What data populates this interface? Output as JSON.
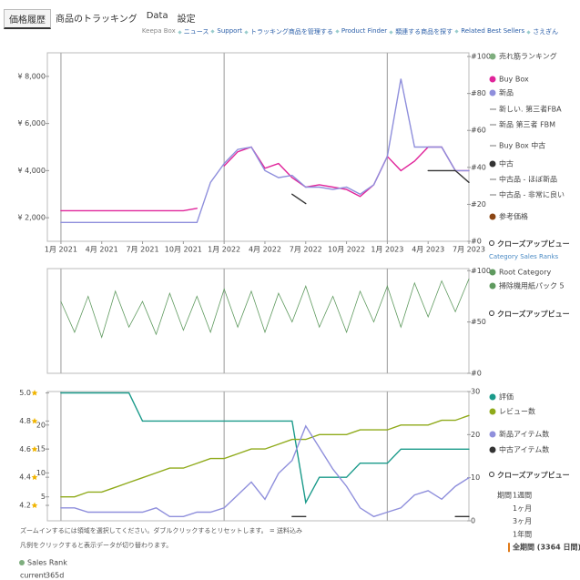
{
  "tabs": [
    "価格履歴",
    "商品のトラッキング",
    "Data",
    "設定"
  ],
  "links": [
    "Keepa Box",
    "ニュース",
    "Support",
    "トラッキング商品を管理する",
    "Product Finder",
    "類連する商品を探す",
    "Related Best Sellers",
    "さえぎん"
  ],
  "closeup_label": "クローズアップビュー",
  "category_sales_ranks": "Category Sales Ranks",
  "period": {
    "label": "期間",
    "options": [
      "1週間",
      "1ヶ月",
      "3ヶ月",
      "1年間",
      "全期間 (3364 日間)"
    ]
  },
  "footer": {
    "lines": [
      "ズームインするには領域を選択してください。ダブルクリックするとリセットします。 = 送料込み",
      "凡例をクリックすると表示データが切り替わります。"
    ],
    "sales_rank": "Sales Rank",
    "columns": [
      "current",
      "365d"
    ]
  },
  "chart_data": [
    {
      "type": "line",
      "x": [
        "2021-01",
        "2021-02",
        "2021-03",
        "2021-04",
        "2021-05",
        "2021-06",
        "2021-07",
        "2021-08",
        "2021-09",
        "2021-10",
        "2021-11",
        "2021-12",
        "2022-01",
        "2022-02",
        "2022-03",
        "2022-04",
        "2022-05",
        "2022-06",
        "2022-07",
        "2022-08",
        "2022-09",
        "2022-10",
        "2022-11",
        "2022-12",
        "2023-01",
        "2023-02",
        "2023-03",
        "2023-04",
        "2023-05",
        "2023-06",
        "2023-07"
      ],
      "xlim": [
        "2020-12",
        "2023-07"
      ],
      "xticks": [
        {
          "value": "2021-01",
          "label": "1月 2021"
        },
        {
          "value": "2021-04",
          "label": "4月 2021"
        },
        {
          "value": "2021-07",
          "label": "7月 2021"
        },
        {
          "value": "2021-10",
          "label": "10月 2021"
        },
        {
          "value": "2022-01",
          "label": "1月 2022"
        },
        {
          "value": "2022-04",
          "label": "4月 2022"
        },
        {
          "value": "2022-07",
          "label": "7月 2022"
        },
        {
          "value": "2022-10",
          "label": "10月 2022"
        },
        {
          "value": "2023-01",
          "label": "1月 2023"
        },
        {
          "value": "2023-04",
          "label": "4月 2023"
        },
        {
          "value": "2023-07",
          "label": "7月 2023"
        }
      ],
      "vlines": [
        "2021-01",
        "2022-01",
        "2023-01"
      ],
      "ylim": [
        1000,
        9000
      ],
      "yticks": [
        {
          "value": 2000,
          "label": "¥ 2,000"
        },
        {
          "value": 4000,
          "label": "¥ 4,000"
        },
        {
          "value": 6000,
          "label": "¥ 6,000"
        },
        {
          "value": 8000,
          "label": "¥ 8,000"
        }
      ],
      "y2lim": [
        0,
        102
      ],
      "y2ticks": [
        {
          "value": 0,
          "label": "#0"
        },
        {
          "value": 20,
          "label": "#20"
        },
        {
          "value": 40,
          "label": "#40"
        },
        {
          "value": 60,
          "label": "#60"
        },
        {
          "value": 80,
          "label": "#80"
        },
        {
          "value": 100,
          "label": "#100"
        }
      ],
      "series": [
        {
          "name": "Buy Box",
          "color": "#e0249a",
          "values": [
            2300,
            2300,
            2300,
            2300,
            2300,
            2300,
            2300,
            2300,
            2300,
            2300,
            2400,
            null,
            4200,
            4800,
            5000,
            4100,
            4300,
            3700,
            3300,
            3400,
            3300,
            3200,
            2900,
            3400,
            4600,
            4000,
            4400,
            5000,
            5000,
            4000,
            4000
          ]
        },
        {
          "name": "新品",
          "color": "#8f8fdc",
          "values": [
            1800,
            1800,
            1800,
            1800,
            1800,
            1800,
            1800,
            1800,
            1800,
            1800,
            1800,
            3500,
            4300,
            4900,
            5000,
            4000,
            3700,
            3800,
            3300,
            3300,
            3200,
            3300,
            3000,
            3400,
            4600,
            7900,
            5000,
            5000,
            5000,
            4000,
            4000
          ]
        },
        {
          "name": "中古",
          "color": "#333333",
          "values": [
            null,
            null,
            null,
            null,
            null,
            null,
            null,
            null,
            null,
            null,
            null,
            null,
            null,
            null,
            null,
            null,
            null,
            3000,
            2600,
            null,
            null,
            null,
            null,
            null,
            null,
            null,
            null,
            4000,
            4000,
            4000,
            3500
          ]
        }
      ],
      "legend_extra": [
        {
          "label": "売れ筋ランキング",
          "color": "#7fae7f",
          "style": "dot"
        },
        {
          "label": "新しい. 第三者FBA",
          "color": "#777777",
          "style": "dash"
        },
        {
          "label": "新品 第三者 FBM",
          "color": "#777777",
          "style": "dash"
        },
        {
          "label": "Buy Box 中古",
          "color": "#777777",
          "style": "dash"
        },
        {
          "label": "中古品 - ほぼ新品",
          "color": "#777777",
          "style": "dash"
        },
        {
          "label": "中古品 - 非常に良い",
          "color": "#777777",
          "style": "dash"
        },
        {
          "label": "参考価格",
          "color": "#8b4513",
          "style": "dot"
        }
      ]
    },
    {
      "type": "line",
      "x": [
        "2021-01",
        "2021-02",
        "2021-03",
        "2021-04",
        "2021-05",
        "2021-06",
        "2021-07",
        "2021-08",
        "2021-09",
        "2021-10",
        "2021-11",
        "2021-12",
        "2022-01",
        "2022-02",
        "2022-03",
        "2022-04",
        "2022-05",
        "2022-06",
        "2022-07",
        "2022-08",
        "2022-09",
        "2022-10",
        "2022-11",
        "2022-12",
        "2023-01",
        "2023-02",
        "2023-03",
        "2023-04",
        "2023-05",
        "2023-06",
        "2023-07"
      ],
      "xlim": [
        "2020-12",
        "2023-07"
      ],
      "vlines": [
        "2021-01",
        "2022-01",
        "2023-01"
      ],
      "ylim": [
        0,
        102
      ],
      "yticks": [
        {
          "value": 0,
          "label": "#0"
        },
        {
          "value": 50,
          "label": "#50"
        },
        {
          "value": 100,
          "label": "#100"
        }
      ],
      "series": [
        {
          "name": "Root Category",
          "color": "#5f9a5f",
          "values": [
            70,
            40,
            75,
            35,
            80,
            45,
            70,
            38,
            78,
            42,
            75,
            40,
            82,
            45,
            80,
            40,
            78,
            50,
            85,
            45,
            75,
            40,
            80,
            50,
            85,
            45,
            88,
            55,
            90,
            60,
            92
          ]
        }
      ],
      "legend_extra": [
        {
          "label": "掃除機用紙パック 5",
          "color": "#5f9a5f",
          "style": "dot"
        }
      ]
    },
    {
      "type": "line",
      "x": [
        "2021-01",
        "2021-02",
        "2021-03",
        "2021-04",
        "2021-05",
        "2021-06",
        "2021-07",
        "2021-08",
        "2021-09",
        "2021-10",
        "2021-11",
        "2021-12",
        "2022-01",
        "2022-02",
        "2022-03",
        "2022-04",
        "2022-05",
        "2022-06",
        "2022-07",
        "2022-08",
        "2022-09",
        "2022-10",
        "2022-11",
        "2022-12",
        "2023-01",
        "2023-02",
        "2023-03",
        "2023-04",
        "2023-05",
        "2023-06",
        "2023-07"
      ],
      "xlim": [
        "2020-12",
        "2023-07"
      ],
      "vlines": [
        "2021-01",
        "2022-01",
        "2023-01"
      ],
      "ylim": [
        4.09,
        5.01
      ],
      "yticks": [
        {
          "value": 4.2,
          "label": "4.2"
        },
        {
          "value": 4.4,
          "label": "4.4"
        },
        {
          "value": 4.6,
          "label": "4.6"
        },
        {
          "value": 4.8,
          "label": "4.8"
        },
        {
          "value": 5,
          "label": "5.0"
        }
      ],
      "y2lim": [
        0,
        27
      ],
      "y2ticks": [
        5,
        10,
        15,
        20
      ],
      "y3lim": [
        0,
        30
      ],
      "y3ticks": [
        0,
        10,
        20,
        30
      ],
      "series": [
        {
          "name": "評価",
          "color": "#1a9a8a",
          "values": [
            5,
            5,
            5,
            5,
            5,
            5,
            4.8,
            4.8,
            4.8,
            4.8,
            4.8,
            4.8,
            4.8,
            4.8,
            4.8,
            4.8,
            4.8,
            4.8,
            4.22,
            4.4,
            4.4,
            4.4,
            4.5,
            4.5,
            4.5,
            4.6,
            4.6,
            4.6,
            4.6,
            4.6,
            4.6
          ]
        },
        {
          "name": "レビュー数",
          "color": "#8faa1a",
          "axis": "y2",
          "values": [
            5,
            5,
            6,
            6,
            7,
            8,
            9,
            10,
            11,
            11,
            12,
            13,
            13,
            14,
            15,
            15,
            16,
            17,
            17,
            18,
            18,
            18,
            19,
            19,
            19,
            20,
            20,
            20,
            21,
            21,
            22
          ]
        },
        {
          "name": "新品アイテム数",
          "color": "#8f8fdc",
          "axis": "y3",
          "values": [
            3,
            3,
            2,
            2,
            2,
            2,
            2,
            3,
            1,
            1,
            2,
            2,
            3,
            6,
            9,
            5,
            11,
            14,
            22,
            17,
            12,
            8,
            3,
            1,
            2,
            3,
            6,
            7,
            5,
            8,
            10
          ]
        },
        {
          "name": "中古アイテム数",
          "color": "#333333",
          "axis": "y3",
          "values": [
            null,
            null,
            null,
            null,
            null,
            null,
            null,
            null,
            null,
            null,
            null,
            null,
            null,
            null,
            null,
            null,
            null,
            1,
            1,
            null,
            null,
            null,
            null,
            null,
            null,
            null,
            1,
            null,
            null,
            1,
            1
          ]
        }
      ]
    }
  ]
}
